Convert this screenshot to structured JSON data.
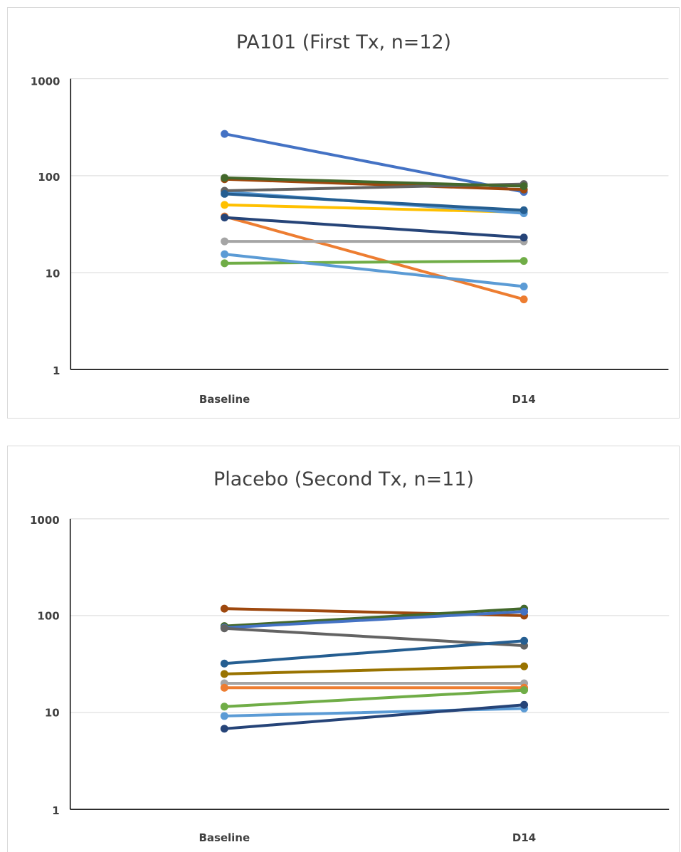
{
  "chart_data": [
    {
      "type": "line",
      "title": "PA101 (First Tx, n=12)",
      "xlabel": "",
      "ylabel": "",
      "y_scale": "log",
      "ylim": [
        1,
        1000
      ],
      "y_ticks": [
        "1",
        "10",
        "100",
        "1000"
      ],
      "categories": [
        "Baseline",
        "D14"
      ],
      "grid": true,
      "legend": "none",
      "series": [
        {
          "color": "#4472C4",
          "values": [
            270,
            68
          ]
        },
        {
          "color": "#ED7D31",
          "values": [
            38,
            5.3
          ]
        },
        {
          "color": "#A5A5A5",
          "values": [
            21,
            21
          ]
        },
        {
          "color": "#FFC000",
          "values": [
            50,
            42
          ]
        },
        {
          "color": "#5B9BD5",
          "values": [
            68,
            41
          ]
        },
        {
          "color": "#70AD47",
          "values": [
            12.5,
            13.2
          ]
        },
        {
          "color": "#264478",
          "values": [
            37,
            23
          ]
        },
        {
          "color": "#9E480E",
          "values": [
            92,
            72
          ]
        },
        {
          "color": "#636363",
          "values": [
            70,
            82
          ]
        },
        {
          "color": "#43682B",
          "values": [
            95,
            78
          ]
        },
        {
          "color": "#5B9BD5",
          "values": [
            15.5,
            7.2
          ]
        },
        {
          "color": "#255E91",
          "values": [
            65,
            44
          ]
        }
      ]
    },
    {
      "type": "line",
      "title": "Placebo (Second Tx, n=11)",
      "xlabel": "",
      "ylabel": "",
      "y_scale": "log",
      "ylim": [
        1,
        1000
      ],
      "y_ticks": [
        "1",
        "10",
        "100",
        "1000"
      ],
      "categories": [
        "Baseline",
        "D14"
      ],
      "grid": true,
      "legend": "none",
      "series": [
        {
          "color": "#9E480E",
          "values": [
            118,
            100
          ]
        },
        {
          "color": "#43682B",
          "values": [
            78,
            118
          ]
        },
        {
          "color": "#4472C4",
          "values": [
            75,
            110
          ]
        },
        {
          "color": "#636363",
          "values": [
            74,
            49
          ]
        },
        {
          "color": "#255E91",
          "values": [
            32,
            55
          ]
        },
        {
          "color": "#997300",
          "values": [
            25,
            30
          ]
        },
        {
          "color": "#A5A5A5",
          "values": [
            20,
            20
          ]
        },
        {
          "color": "#ED7D31",
          "values": [
            18,
            18
          ]
        },
        {
          "color": "#70AD47",
          "values": [
            11.5,
            17
          ]
        },
        {
          "color": "#5B9BD5",
          "values": [
            9.2,
            11
          ]
        },
        {
          "color": "#264478",
          "values": [
            6.8,
            12
          ]
        }
      ]
    }
  ]
}
